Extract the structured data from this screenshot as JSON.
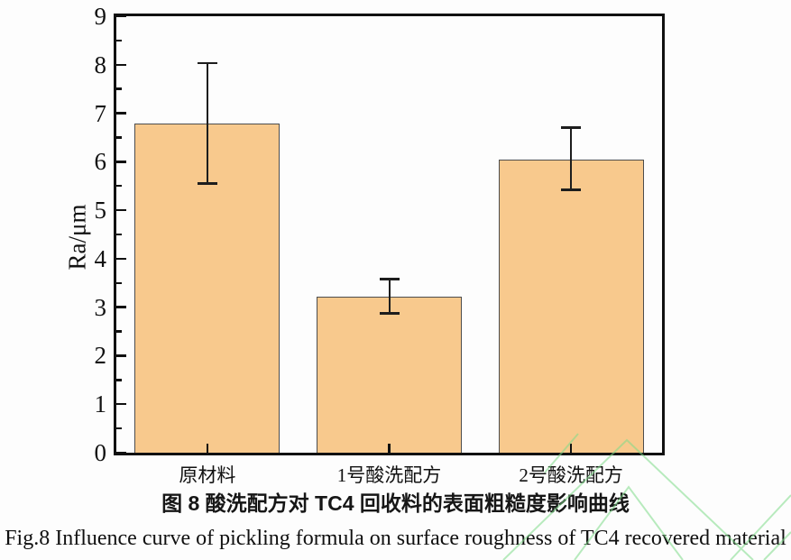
{
  "figure": {
    "caption_cn": "图 8 酸洗配方对 TC4 回收料的表面粗糙度影响曲线",
    "caption_en": "Fig.8 Influence curve of pickling formula on surface roughness of TC4 recovered material"
  },
  "chart_data": {
    "type": "bar",
    "categories": [
      "原材料",
      "1号酸洗配方",
      "2号酸洗配方"
    ],
    "values": [
      6.78,
      3.22,
      6.05
    ],
    "error_plus": [
      1.25,
      0.36,
      0.65
    ],
    "error_minus": [
      1.23,
      0.35,
      0.63
    ],
    "title": "",
    "xlabel": "",
    "ylabel": "Ra/μm",
    "ylim": [
      0,
      9
    ],
    "y_major_step": 1,
    "y_minor_step": 0.5,
    "grid": false,
    "legend": "none",
    "bar_width_fraction": 0.8,
    "bar_fill": "#F8C98D",
    "bar_border": "#4d4d4d",
    "axis_color": "#111111",
    "error_color": "#1d1d1d",
    "watermark_color": "#7fdc8a"
  }
}
